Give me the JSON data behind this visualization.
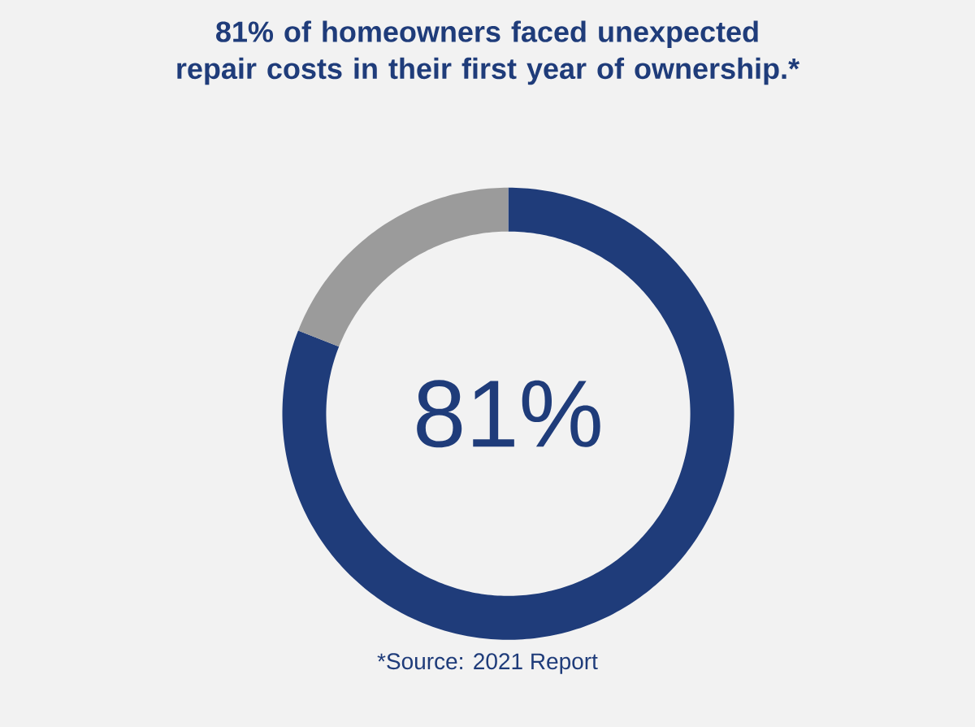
{
  "chart_data": {
    "type": "donut",
    "title": "81% of homeowners faced unexpected repair costs in their first year of ownership.*",
    "categories": [
      null,
      null
    ],
    "values": [
      81,
      19
    ],
    "colors": [
      "#1f3c7a",
      "#9b9b9b"
    ],
    "value_labels": [
      "81%",
      null
    ],
    "annotations": [
      "*Source: 2021 Report"
    ]
  }
}
